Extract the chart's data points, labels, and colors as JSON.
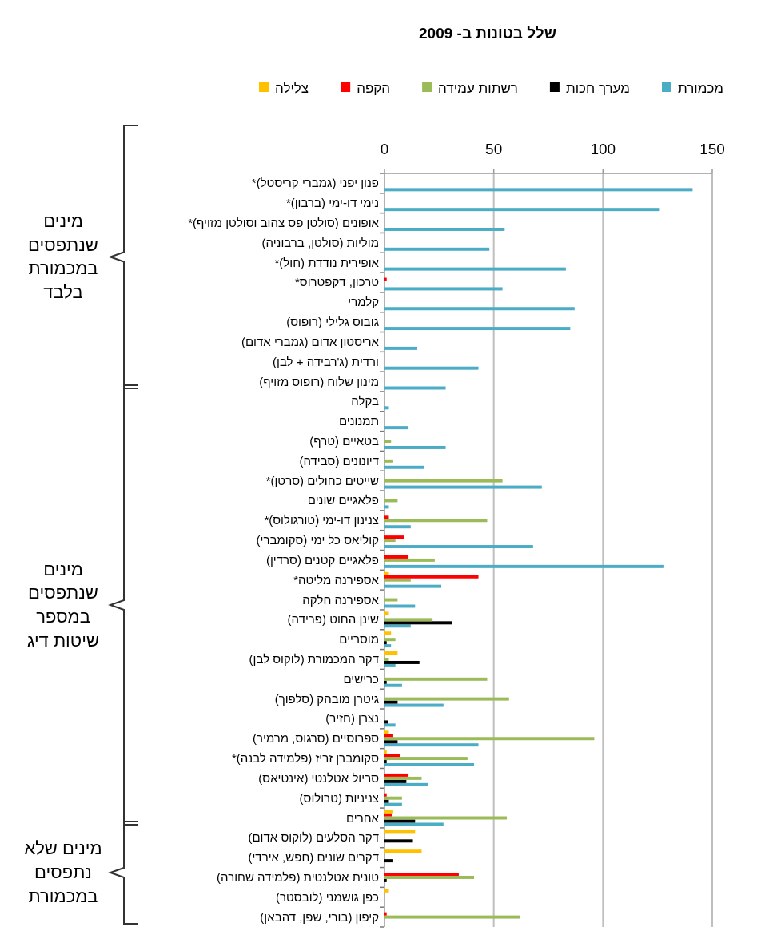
{
  "chart_data": {
    "type": "bar",
    "orientation": "horizontal",
    "title": "שלל בטונות ב- 2009",
    "categories": [
      "פנון יפני (גמברי קריסטל)*",
      "נימי דו-ימי (ברבון)*",
      "אופונים (סולטן פס צהוב וסולטן מזויף)*",
      "מוליות (סולטן, ברבוניה)",
      "אופירית נודדת (חול)*",
      "טרכון, דקפטרוס*",
      "קלמרי",
      "גובוס גלילי (רופוס)",
      "אריסטון אדום (גמברי אדום)",
      "ורדית (ג'רבידה + לבן)",
      "מינון שלוח (רופוס מזויף)",
      "בקלה",
      "תמנונים",
      "בטאיים (טרף)",
      "דיונונים (סבידה)",
      "שייטים כחולים (סרטן)*",
      "פלאגיים שונים",
      "צנינון דו-ימי (טורגולוס)*",
      "קוליאס כל ימי (סקומברי)",
      "פלאגיים קטנים (סרדין)",
      "אספירנה מליטה*",
      "אספירנה חלקה",
      "שינן החוט (פרידה)",
      "מוסריים",
      "דקר המכמורת (לוקוס לבן)",
      "כרישים",
      "גיטרן מובהק (סלפוך)",
      "נצרן (חזיר)",
      "ספרוסיים (סרגוס, מרמיר)",
      "סקומברן זריז (פלמידה לבנה)*",
      "סריול אטלנטי (אינטיאס)",
      "צניניות (טרולוס)",
      "אחרים",
      "דקר הסלעים (לוקוס אדום)",
      "דקרים שונים (חפש, אירדי)",
      "טונית אטלנטית (פלמידה שחורה)",
      "כפן גושמני (לובסטר)",
      "קיפון (בורי, שפן, דהבאן)"
    ],
    "series": [
      {
        "name": "מכמורת",
        "color": "#4bacc6",
        "values": [
          141,
          126,
          55,
          48,
          83,
          54,
          87,
          85,
          15,
          43,
          28,
          2,
          11,
          28,
          18,
          72,
          2,
          12,
          68,
          128,
          26,
          14,
          12,
          3,
          5,
          8,
          27,
          5,
          43,
          41,
          20,
          8,
          27,
          null,
          null,
          null,
          null,
          null
        ]
      },
      {
        "name": "מערך חכות",
        "color": "#000000",
        "values": [
          null,
          null,
          null,
          null,
          null,
          null,
          null,
          null,
          null,
          null,
          null,
          null,
          null,
          null,
          null,
          null,
          null,
          null,
          null,
          null,
          null,
          null,
          31,
          1,
          16,
          1,
          6,
          1.5,
          6,
          1,
          10,
          2,
          14,
          13,
          4,
          1,
          null,
          null
        ]
      },
      {
        "name": "רשתות עמידה",
        "color": "#9bbb59",
        "values": [
          null,
          null,
          null,
          null,
          null,
          null,
          null,
          null,
          null,
          null,
          null,
          null,
          null,
          3,
          4,
          54,
          6,
          47,
          5,
          23,
          12,
          6,
          22,
          5,
          2,
          47,
          57,
          null,
          96,
          38,
          17,
          8,
          56,
          null,
          null,
          41,
          null,
          62
        ]
      },
      {
        "name": "הקפה",
        "color": "#ff0000",
        "values": [
          null,
          null,
          null,
          null,
          null,
          1,
          null,
          null,
          null,
          null,
          null,
          null,
          null,
          null,
          null,
          null,
          null,
          2,
          9,
          11,
          43,
          null,
          null,
          null,
          null,
          null,
          null,
          null,
          4,
          7,
          11,
          1,
          3.5,
          null,
          null,
          34,
          null,
          1
        ]
      },
      {
        "name": "צלילה",
        "color": "#ffc000",
        "values": [
          null,
          null,
          null,
          null,
          null,
          null,
          null,
          null,
          null,
          null,
          null,
          null,
          null,
          null,
          null,
          null,
          null,
          null,
          null,
          null,
          2,
          null,
          2,
          3,
          6,
          null,
          null,
          null,
          2,
          1,
          null,
          null,
          4,
          14,
          17,
          null,
          2,
          null
        ]
      }
    ],
    "xlim": [
      0,
      150
    ],
    "xticks": [
      0,
      50,
      100,
      150
    ],
    "grid": "x",
    "legend": "top",
    "annotations": [
      "מינים שנתפסים במכמורת בלבד",
      "מינים שנתפסים במספר שיטות דיג",
      "מינים שלא נתפסים במכמורת"
    ]
  }
}
